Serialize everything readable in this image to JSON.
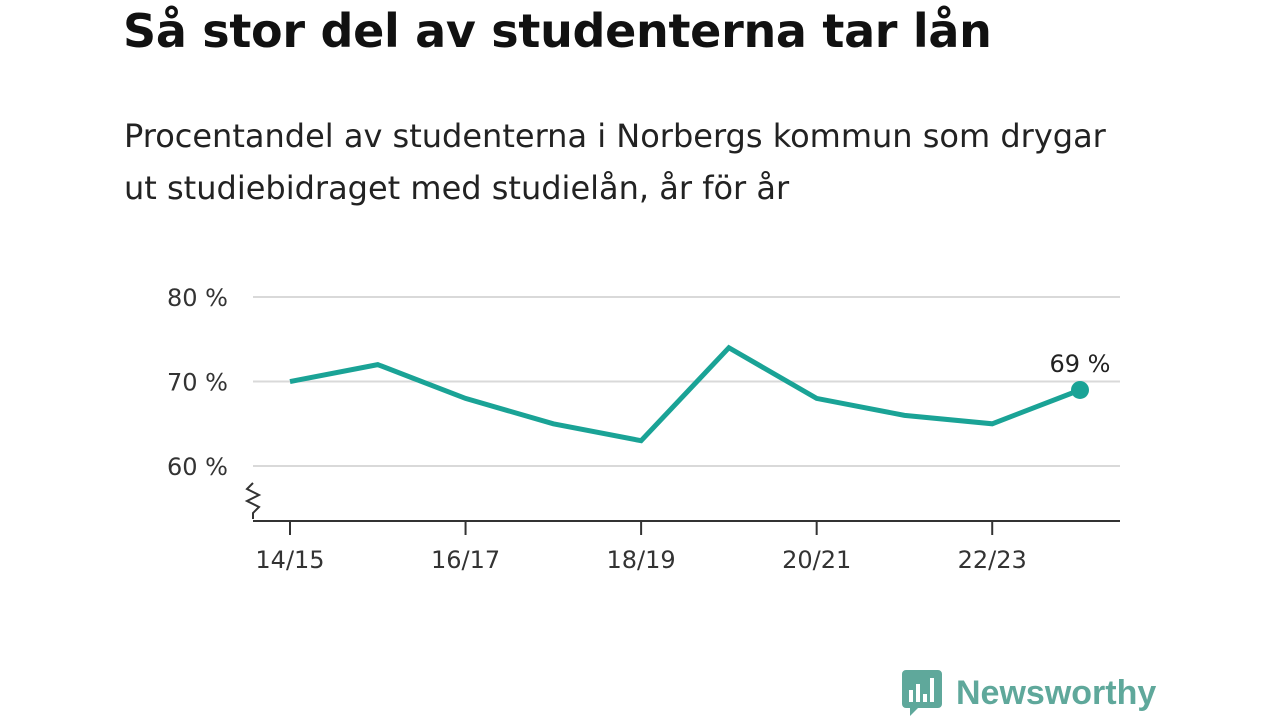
{
  "title": "Så stor del av studenterna tar lån",
  "subtitle": "Procentandel av studenterna i Norbergs kommun som drygar ut studiebidraget med studielån, år för år",
  "brand": {
    "name": "Newsworthy",
    "color": "#5fa89b",
    "icon": "bar-chart-speech-bubble-icon"
  },
  "colors": {
    "line": "#1aa396",
    "grid": "#d9d9d9",
    "axis": "#333333"
  },
  "chart_data": {
    "type": "line",
    "x": [
      "14/15",
      "15/16",
      "16/17",
      "17/18",
      "18/19",
      "19/20",
      "20/21",
      "21/22",
      "22/23",
      "23/24"
    ],
    "x_tick_labels": [
      "14/15",
      "16/17",
      "18/19",
      "20/21",
      "22/23"
    ],
    "series": [
      {
        "values": [
          70,
          72,
          68,
          65,
          63,
          74,
          68,
          66,
          65,
          69
        ]
      }
    ],
    "y_ticks": [
      60,
      70,
      80
    ],
    "y_tick_labels": [
      "60 %",
      "70 %",
      "80 %"
    ],
    "ylim": [
      53.5,
      80
    ],
    "axis_break": true,
    "last_point_label": "69 %",
    "grid": true
  }
}
